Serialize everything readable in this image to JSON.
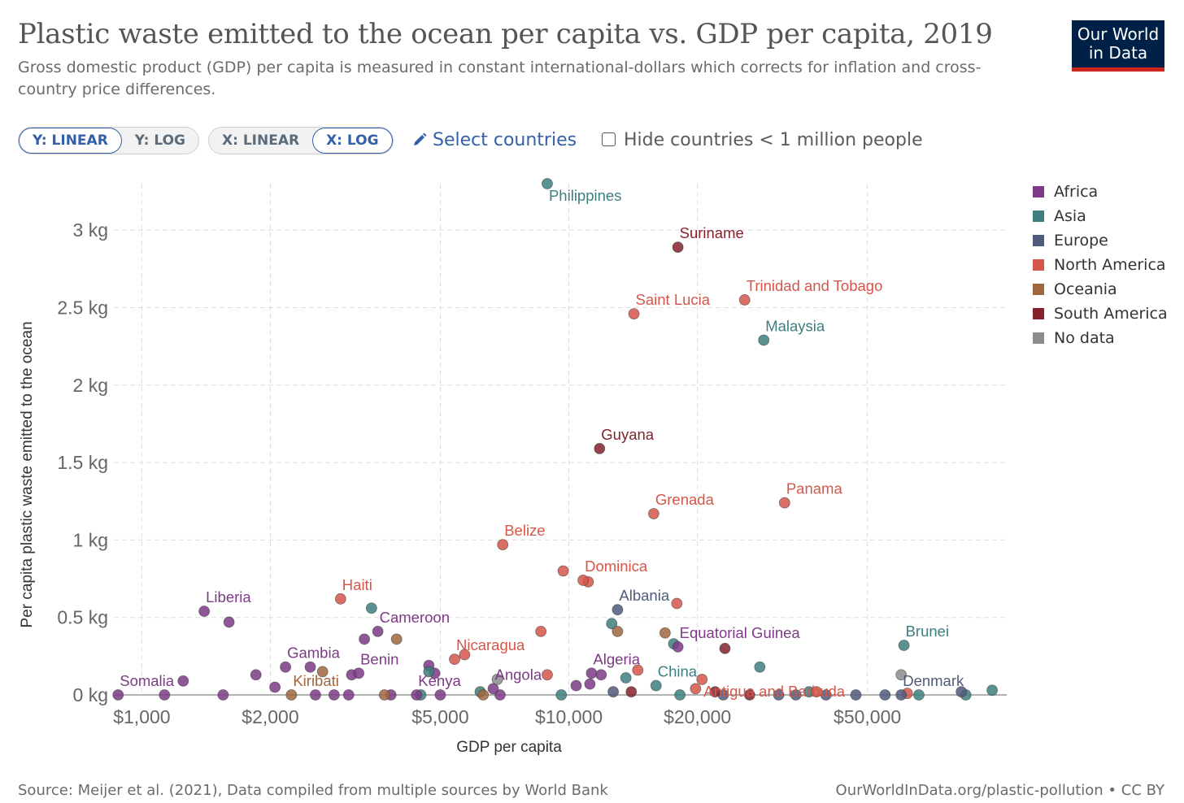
{
  "header": {
    "title": "Plastic waste emitted to the ocean per capita vs. GDP per capita, 2019",
    "subtitle": "Gross domestic product (GDP) per capita is measured in constant international-dollars which corrects for inflation and cross-country price differences.",
    "logo_line1": "Our World",
    "logo_line2": "in Data",
    "logo_bg": "#002147",
    "logo_accent": "#ce261e"
  },
  "controls": {
    "y_linear": "Y: LINEAR",
    "y_log": "Y: LOG",
    "x_linear": "X: LINEAR",
    "x_log": "X: LOG",
    "select_countries": "Select countries",
    "select_icon": "pencil-icon",
    "hide_small": "Hide countries < 1 million people",
    "active_y": "linear",
    "active_x": "log"
  },
  "legend": [
    {
      "label": "Africa",
      "color": "#7d3a86"
    },
    {
      "label": "Asia",
      "color": "#3c7f7d"
    },
    {
      "label": "Europe",
      "color": "#4f5b7c"
    },
    {
      "label": "North America",
      "color": "#d5564a"
    },
    {
      "label": "Oceania",
      "color": "#a0663f"
    },
    {
      "label": "South America",
      "color": "#84232b"
    },
    {
      "label": "No data",
      "color": "#8c8c8c"
    }
  ],
  "chart_data": {
    "type": "scatter",
    "xlabel": "GDP per capita",
    "ylabel": "Per capita plastic waste emitted to the ocean",
    "x_scale": "log",
    "y_scale": "linear",
    "xlim": [
      860,
      106000
    ],
    "ylim": [
      0,
      3.3
    ],
    "grid": true,
    "legend_position": "right",
    "x_ticks": [
      {
        "value": 1000,
        "label": "$1,000"
      },
      {
        "value": 2000,
        "label": "$2,000"
      },
      {
        "value": 5000,
        "label": "$5,000"
      },
      {
        "value": 10000,
        "label": "$10,000"
      },
      {
        "value": 20000,
        "label": "$20,000"
      },
      {
        "value": 50000,
        "label": "$50,000"
      }
    ],
    "y_ticks": [
      {
        "value": 0,
        "label": "0 kg"
      },
      {
        "value": 0.5,
        "label": "0.5 kg"
      },
      {
        "value": 1,
        "label": "1 kg"
      },
      {
        "value": 1.5,
        "label": "1.5 kg"
      },
      {
        "value": 2,
        "label": "2 kg"
      },
      {
        "value": 2.5,
        "label": "2.5 kg"
      },
      {
        "value": 3,
        "label": "3 kg"
      }
    ],
    "labeled_points": [
      {
        "label": "Philippines",
        "region": "Asia",
        "x": 8900,
        "y": 3.3,
        "anchor": "below"
      },
      {
        "label": "Suriname",
        "region": "South America",
        "x": 18000,
        "y": 2.89,
        "anchor": "above"
      },
      {
        "label": "Trinidad and Tobago",
        "region": "North America",
        "x": 25800,
        "y": 2.55,
        "anchor": "above"
      },
      {
        "label": "Saint Lucia",
        "region": "North America",
        "x": 14200,
        "y": 2.46,
        "anchor": "above"
      },
      {
        "label": "Malaysia",
        "region": "Asia",
        "x": 28600,
        "y": 2.29,
        "anchor": "above"
      },
      {
        "label": "Guyana",
        "region": "South America",
        "x": 11800,
        "y": 1.59,
        "anchor": "above"
      },
      {
        "label": "Panama",
        "region": "North America",
        "x": 32000,
        "y": 1.24,
        "anchor": "above"
      },
      {
        "label": "Grenada",
        "region": "North America",
        "x": 15800,
        "y": 1.17,
        "anchor": "above"
      },
      {
        "label": "Belize",
        "region": "North America",
        "x": 7000,
        "y": 0.97,
        "anchor": "above"
      },
      {
        "label": "Dominica",
        "region": "North America",
        "x": 10800,
        "y": 0.74,
        "anchor": "above"
      },
      {
        "label": "Liberia",
        "region": "Africa",
        "x": 1400,
        "y": 0.54,
        "anchor": "above"
      },
      {
        "label": "Haiti",
        "region": "North America",
        "x": 2920,
        "y": 0.62,
        "anchor": "above"
      },
      {
        "label": "Albania",
        "region": "Europe",
        "x": 13000,
        "y": 0.55,
        "anchor": "above"
      },
      {
        "label": "Cameroon",
        "region": "Africa",
        "x": 3570,
        "y": 0.41,
        "anchor": "above"
      },
      {
        "label": "Equatorial Guinea",
        "region": "Africa",
        "x": 18000,
        "y": 0.31,
        "anchor": "above"
      },
      {
        "label": "Brunei",
        "region": "Asia",
        "x": 60900,
        "y": 0.32,
        "anchor": "above"
      },
      {
        "label": "Nicaragua",
        "region": "North America",
        "x": 5400,
        "y": 0.23,
        "anchor": "above"
      },
      {
        "label": "Gambia",
        "region": "Africa",
        "x": 2170,
        "y": 0.18,
        "anchor": "above"
      },
      {
        "label": "Benin",
        "region": "Africa",
        "x": 3220,
        "y": 0.14,
        "anchor": "above"
      },
      {
        "label": "Algeria",
        "region": "Africa",
        "x": 11300,
        "y": 0.14,
        "anchor": "above"
      },
      {
        "label": "China",
        "region": "Asia",
        "x": 16000,
        "y": 0.06,
        "anchor": "above"
      },
      {
        "label": "Angola",
        "region": "Africa",
        "x": 6650,
        "y": 0.04,
        "anchor": "above"
      },
      {
        "label": "Kenya",
        "region": "Africa",
        "x": 4400,
        "y": 0.0,
        "anchor": "above"
      },
      {
        "label": "Antigua and Barbuda",
        "region": "North America",
        "x": 20500,
        "y": 0.1,
        "anchor": "below"
      },
      {
        "label": "Somalia",
        "region": "Africa",
        "x": 880,
        "y": 0.0,
        "anchor": "above"
      },
      {
        "label": "Kiribati",
        "region": "Oceania",
        "x": 2240,
        "y": 0.0,
        "anchor": "above"
      },
      {
        "label": "Denmark",
        "region": "Europe",
        "x": 60000,
        "y": 0.0,
        "anchor": "above"
      }
    ],
    "points": [
      {
        "region": "Africa",
        "x": 1250,
        "y": 0.09
      },
      {
        "region": "Africa",
        "x": 1600,
        "y": 0.47
      },
      {
        "region": "Africa",
        "x": 1850,
        "y": 0.13
      },
      {
        "region": "Africa",
        "x": 2050,
        "y": 0.05
      },
      {
        "region": "Africa",
        "x": 2480,
        "y": 0.18
      },
      {
        "region": "Africa",
        "x": 3320,
        "y": 0.36
      },
      {
        "region": "Africa",
        "x": 3100,
        "y": 0.13
      },
      {
        "region": "Africa",
        "x": 4700,
        "y": 0.19
      },
      {
        "region": "Africa",
        "x": 4850,
        "y": 0.14
      },
      {
        "region": "Africa",
        "x": 10400,
        "y": 0.06
      },
      {
        "region": "Africa",
        "x": 11200,
        "y": 0.07
      },
      {
        "region": "Africa",
        "x": 11900,
        "y": 0.13
      },
      {
        "region": "Africa",
        "x": 1130,
        "y": 0.0
      },
      {
        "region": "Africa",
        "x": 1550,
        "y": 0.0
      },
      {
        "region": "Africa",
        "x": 2550,
        "y": 0.0
      },
      {
        "region": "Africa",
        "x": 2820,
        "y": 0.0
      },
      {
        "region": "Africa",
        "x": 3050,
        "y": 0.0
      },
      {
        "region": "Africa",
        "x": 3830,
        "y": 0.0
      },
      {
        "region": "Africa",
        "x": 5000,
        "y": 0.0
      },
      {
        "region": "Africa",
        "x": 6900,
        "y": 0.0
      },
      {
        "region": "Asia",
        "x": 3450,
        "y": 0.56
      },
      {
        "region": "Asia",
        "x": 12600,
        "y": 0.46
      },
      {
        "region": "Asia",
        "x": 4700,
        "y": 0.15
      },
      {
        "region": "Asia",
        "x": 13600,
        "y": 0.11
      },
      {
        "region": "Asia",
        "x": 28000,
        "y": 0.18
      },
      {
        "region": "Asia",
        "x": 17600,
        "y": 0.33
      },
      {
        "region": "Asia",
        "x": 4500,
        "y": 0.0
      },
      {
        "region": "Asia",
        "x": 6200,
        "y": 0.02
      },
      {
        "region": "Asia",
        "x": 9600,
        "y": 0.0
      },
      {
        "region": "Asia",
        "x": 18200,
        "y": 0.0
      },
      {
        "region": "Asia",
        "x": 85000,
        "y": 0.0
      },
      {
        "region": "Asia",
        "x": 98000,
        "y": 0.03
      },
      {
        "region": "Asia",
        "x": 66000,
        "y": 0.0
      },
      {
        "region": "Asia",
        "x": 36500,
        "y": 0.02
      },
      {
        "region": "Europe",
        "x": 12700,
        "y": 0.02
      },
      {
        "region": "Europe",
        "x": 23000,
        "y": 0.0
      },
      {
        "region": "Europe",
        "x": 31000,
        "y": 0.0
      },
      {
        "region": "Europe",
        "x": 34000,
        "y": 0.0
      },
      {
        "region": "Europe",
        "x": 40000,
        "y": 0.0
      },
      {
        "region": "Europe",
        "x": 47000,
        "y": 0.0
      },
      {
        "region": "Europe",
        "x": 55000,
        "y": 0.0
      },
      {
        "region": "Europe",
        "x": 83000,
        "y": 0.02
      },
      {
        "region": "North America",
        "x": 8600,
        "y": 0.41
      },
      {
        "region": "North America",
        "x": 9700,
        "y": 0.8
      },
      {
        "region": "North America",
        "x": 11100,
        "y": 0.73
      },
      {
        "region": "North America",
        "x": 17900,
        "y": 0.59
      },
      {
        "region": "North America",
        "x": 5700,
        "y": 0.26
      },
      {
        "region": "North America",
        "x": 8900,
        "y": 0.13
      },
      {
        "region": "North America",
        "x": 14500,
        "y": 0.16
      },
      {
        "region": "North America",
        "x": 19800,
        "y": 0.04
      },
      {
        "region": "North America",
        "x": 38000,
        "y": 0.02
      },
      {
        "region": "North America",
        "x": 62000,
        "y": 0.01
      },
      {
        "region": "Oceania",
        "x": 3950,
        "y": 0.36
      },
      {
        "region": "Oceania",
        "x": 13000,
        "y": 0.41
      },
      {
        "region": "Oceania",
        "x": 16800,
        "y": 0.4
      },
      {
        "region": "Oceania",
        "x": 2650,
        "y": 0.15
      },
      {
        "region": "Oceania",
        "x": 3700,
        "y": 0.0
      },
      {
        "region": "Oceania",
        "x": 6300,
        "y": 0.0
      },
      {
        "region": "South America",
        "x": 23200,
        "y": 0.3
      },
      {
        "region": "South America",
        "x": 14000,
        "y": 0.02
      },
      {
        "region": "South America",
        "x": 22000,
        "y": 0.02
      },
      {
        "region": "South America",
        "x": 26500,
        "y": 0.0
      },
      {
        "region": "No data",
        "x": 60000,
        "y": 0.13
      },
      {
        "region": "No data",
        "x": 6800,
        "y": 0.1
      }
    ]
  },
  "footer": {
    "source": "Source: Meijer et al. (2021), Data compiled from multiple sources by World Bank",
    "url": "OurWorldInData.org/plastic-pollution • CC BY"
  }
}
